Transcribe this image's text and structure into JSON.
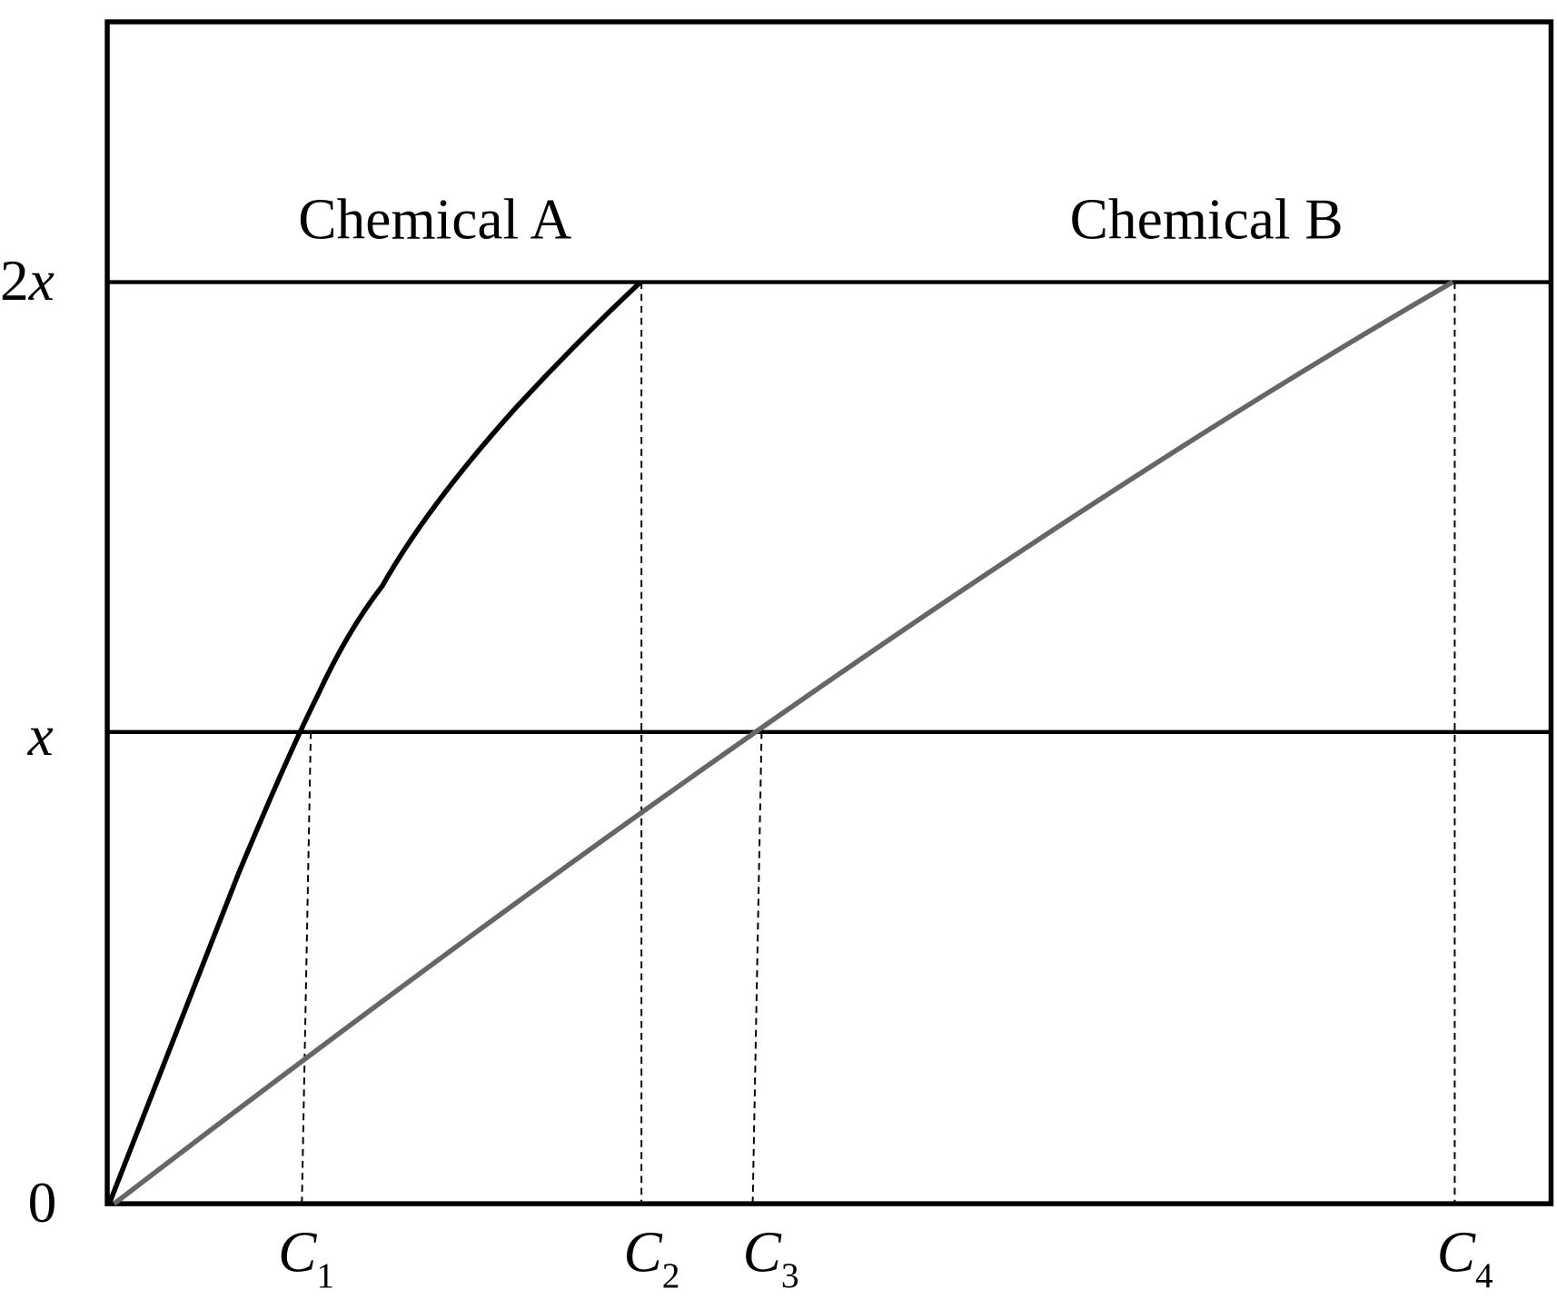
{
  "labels": {
    "chemical_a": "Chemical A",
    "chemical_b": "Chemical B"
  },
  "y_labels": [
    {
      "coef": "2",
      "var": "x"
    },
    {
      "var": "x"
    },
    {
      "text": "0"
    }
  ],
  "x_labels": [
    {
      "main": "C",
      "sub": "1"
    },
    {
      "main": "C",
      "sub": "2"
    },
    {
      "main": "C",
      "sub": "3"
    },
    {
      "main": "C",
      "sub": "4"
    }
  ]
}
